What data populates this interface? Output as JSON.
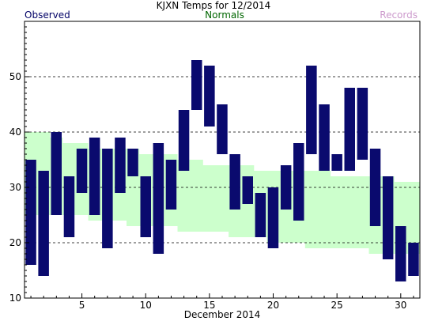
{
  "chart_data": {
    "type": "bar",
    "title": "KJXN Temps for 12/2014",
    "xlabel": "December 2014",
    "ylabel": "",
    "legend": [
      {
        "name": "Observed",
        "color": "#000066"
      },
      {
        "name": "Normals",
        "color": "#006600"
      },
      {
        "name": "Records",
        "color": "#cc99cc"
      }
    ],
    "colors": {
      "observed": "#0a0a6e",
      "normals": "#ccffcc",
      "records": "#cc99cc"
    },
    "xlim": [
      0.5,
      31.5
    ],
    "ylim": [
      10,
      60
    ],
    "x_ticks": [
      5,
      10,
      15,
      20,
      25,
      30
    ],
    "y_ticks": [
      10,
      20,
      30,
      40,
      50
    ],
    "grid": {
      "y": true,
      "style": "dashed"
    },
    "days": [
      1,
      2,
      3,
      4,
      5,
      6,
      7,
      8,
      9,
      10,
      11,
      12,
      13,
      14,
      15,
      16,
      17,
      18,
      19,
      20,
      21,
      22,
      23,
      24,
      25,
      26,
      27,
      28,
      29,
      30,
      31
    ],
    "observed_high": [
      35,
      33,
      40,
      32,
      37,
      39,
      37,
      39,
      37,
      32,
      38,
      35,
      44,
      53,
      52,
      45,
      36,
      32,
      29,
      30,
      34,
      38,
      52,
      45,
      36,
      48,
      48,
      37,
      32,
      23,
      20
    ],
    "observed_low": [
      16,
      14,
      25,
      21,
      29,
      25,
      19,
      29,
      32,
      21,
      18,
      26,
      33,
      44,
      41,
      36,
      26,
      27,
      21,
      19,
      26,
      24,
      36,
      33,
      33,
      33,
      35,
      23,
      17,
      13,
      14
    ],
    "normal_high": [
      40,
      40,
      39,
      38,
      38,
      37,
      37,
      37,
      37,
      36,
      36,
      36,
      35,
      35,
      34,
      34,
      34,
      34,
      33,
      33,
      33,
      33,
      33,
      33,
      32,
      32,
      32,
      32,
      32,
      31,
      31
    ],
    "normal_low": [
      25,
      25,
      25,
      25,
      25,
      24,
      24,
      24,
      23,
      23,
      23,
      23,
      22,
      22,
      22,
      22,
      21,
      21,
      21,
      20,
      20,
      20,
      19,
      19,
      19,
      19,
      19,
      18,
      18,
      18,
      18
    ]
  }
}
